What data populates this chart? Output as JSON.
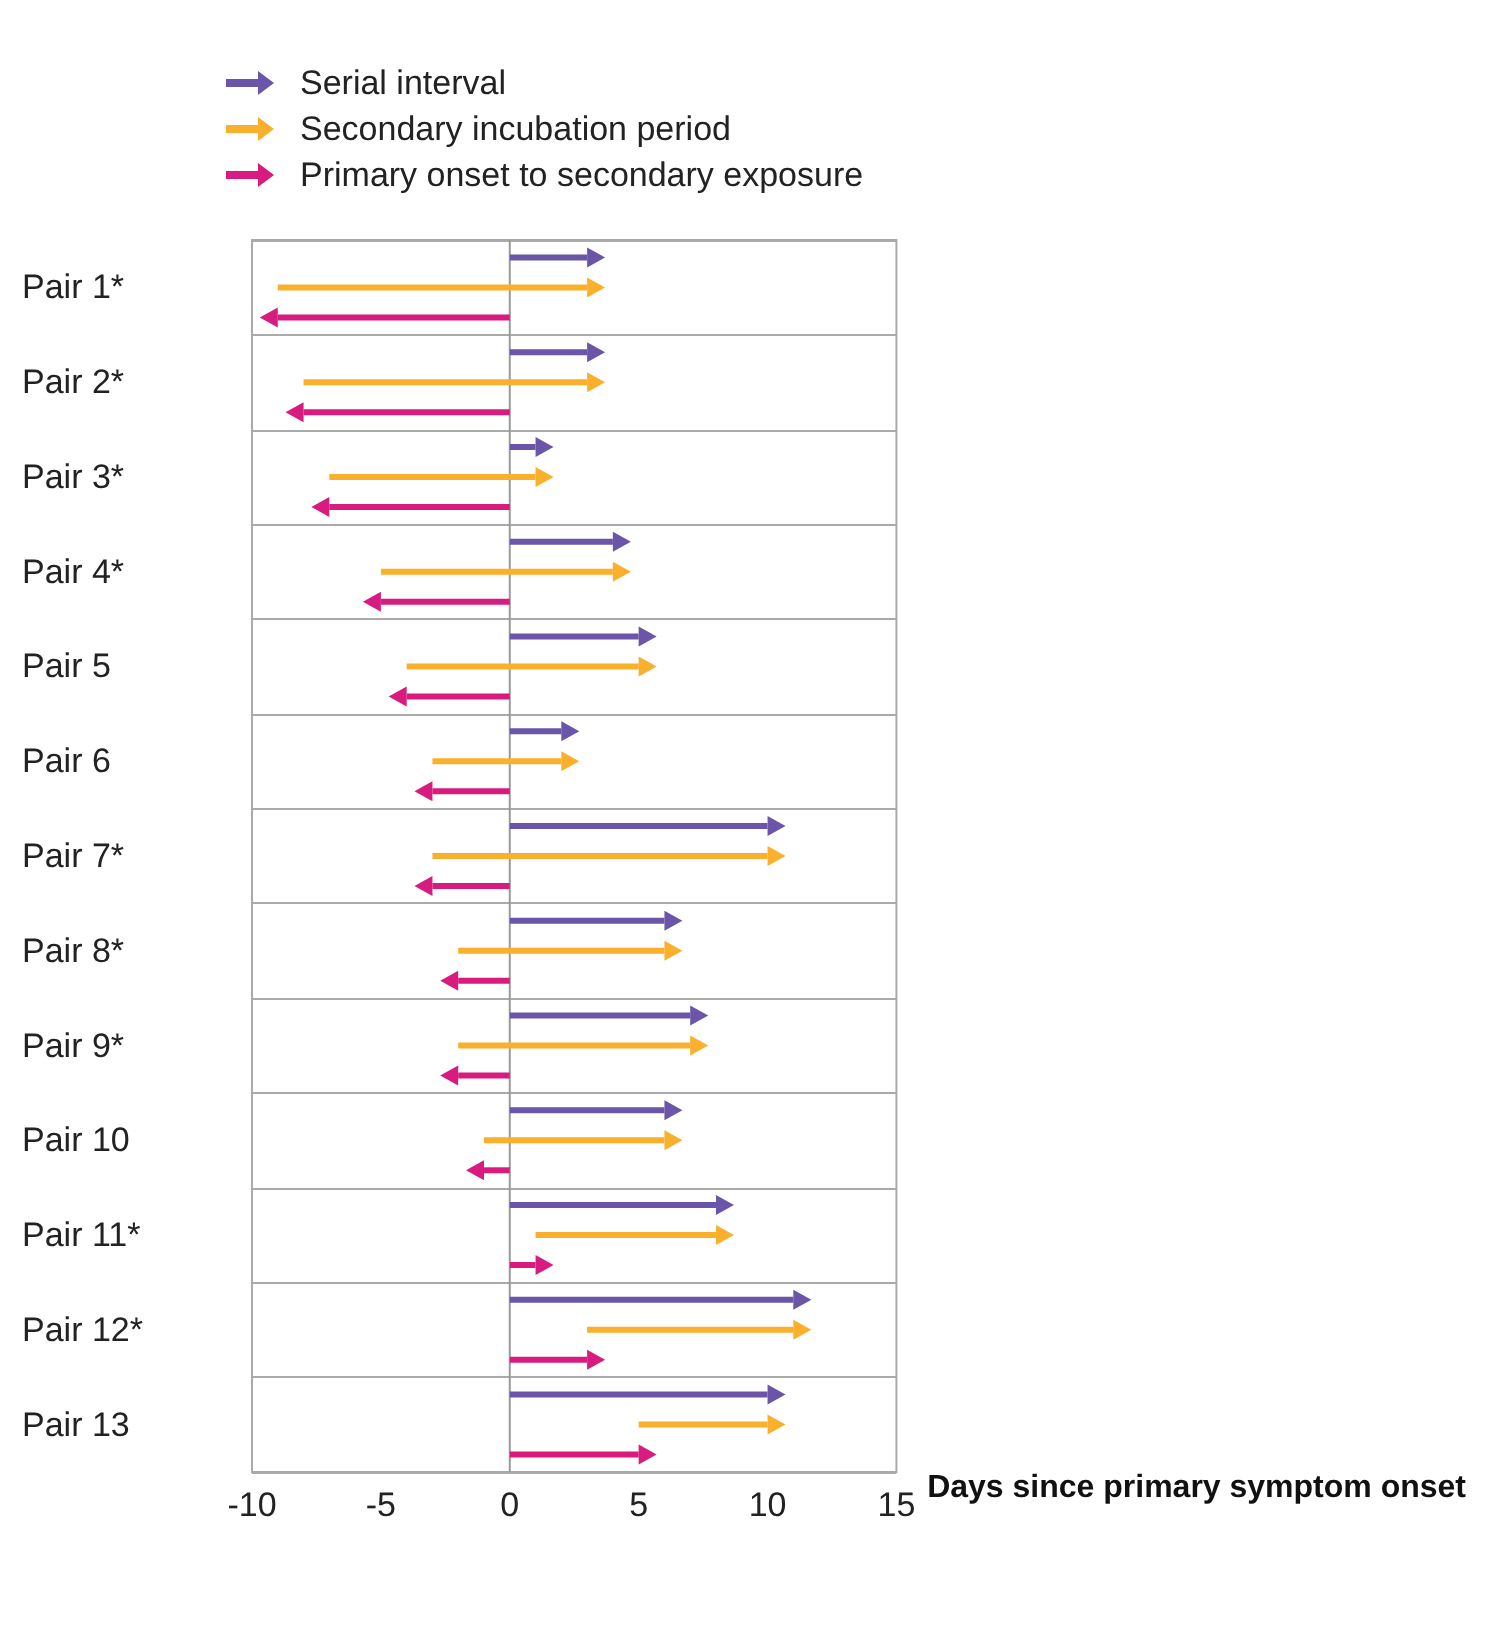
{
  "chart_data": {
    "type": "bar",
    "orientation": "horizontal",
    "xlabel": "Days since primary symptom onset",
    "categories": [
      "Pair 1*",
      "Pair 2*",
      "Pair 3*",
      "Pair 4*",
      "Pair 5",
      "Pair 6",
      "Pair 7*",
      "Pair 8*",
      "Pair 9*",
      "Pair 10",
      "Pair 11*",
      "Pair 12*",
      "Pair 13"
    ],
    "series": [
      {
        "name": "Serial interval",
        "color": "#6b55a8",
        "values": [
          3,
          3,
          1,
          4,
          5,
          2,
          10,
          6,
          7,
          6,
          8,
          11,
          10
        ]
      },
      {
        "name": "Secondary incubation period",
        "color": "#fbb02d",
        "base": [
          -9,
          -8,
          -7,
          -5,
          -4,
          -3,
          -3,
          -2,
          -2,
          -1,
          1,
          3,
          5
        ],
        "values": [
          12,
          11,
          8,
          9,
          9,
          5,
          13,
          8,
          9,
          7,
          7,
          8,
          5
        ]
      },
      {
        "name": "Primary onset to secondary exposure",
        "color": "#d81b7f",
        "values": [
          -9,
          -8,
          -7,
          -5,
          -4,
          -3,
          -3,
          -2,
          -2,
          -1,
          1,
          3,
          5
        ]
      }
    ],
    "xlim": [
      -10,
      15
    ],
    "xticks": [
      -10,
      -5,
      0,
      5,
      10,
      15
    ],
    "grid": "y",
    "legend": "top left",
    "ref_lines": [
      {
        "axis": "x",
        "value": 0,
        "color": "#999999"
      }
    ]
  }
}
